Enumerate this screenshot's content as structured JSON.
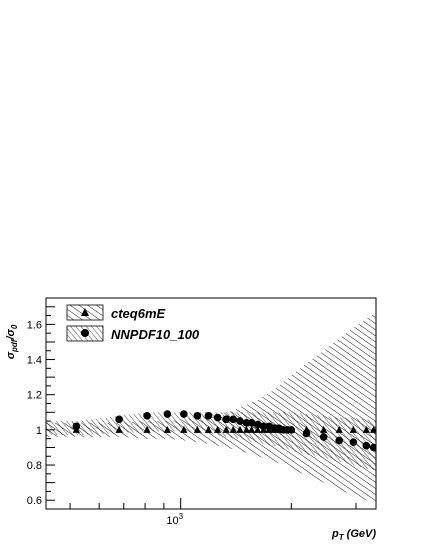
{
  "chart_data": {
    "type": "scatter",
    "title": "",
    "xlabel": "p_T (GeV)",
    "xlabel_main": "p",
    "xlabel_sub": "T",
    "xlabel_unit": "(GeV)",
    "ylabel_main": "σ",
    "ylabel_sub": "pdf",
    "ylabel_denom": "/σ",
    "ylabel_denom_sub": "0",
    "xscale": "log",
    "xlim": [
      430,
      3400
    ],
    "ylim": [
      0.55,
      1.75
    ],
    "yticks": [
      {
        "value": 0.6,
        "label": "0.6"
      },
      {
        "value": 0.8,
        "label": "0.8"
      },
      {
        "value": 1.0,
        "label": "1"
      },
      {
        "value": 1.2,
        "label": "1.2"
      },
      {
        "value": 1.4,
        "label": "1.4"
      },
      {
        "value": 1.6,
        "label": "1.6"
      }
    ],
    "xticks_major": [
      {
        "value": 1000,
        "base": "10",
        "exp": "3"
      }
    ],
    "xticks_minor": [
      500,
      600,
      700,
      800,
      900,
      2000,
      3000
    ],
    "legend_position": "top-left",
    "x": [
      520,
      680,
      810,
      920,
      1020,
      1110,
      1190,
      1260,
      1330,
      1390,
      1450,
      1510,
      1560,
      1620,
      1680,
      1740,
      1800,
      1850,
      1900,
      1950,
      2000,
      2200,
      2450,
      2700,
      2950,
      3200,
      3350
    ],
    "series": [
      {
        "name": "cteq6mE",
        "marker": "triangle",
        "values": [
          1.0,
          1.0,
          1.0,
          1.0,
          1.0,
          1.0,
          1.0,
          1.0,
          1.0,
          1.0,
          1.0,
          1.0,
          1.0,
          1.0,
          1.0,
          1.0,
          1.0,
          1.0,
          1.0,
          1.0,
          1.0,
          1.0,
          1.0,
          1.0,
          1.0,
          1.0,
          1.0
        ],
        "band_low": [
          0.96,
          0.96,
          0.95,
          0.95,
          0.94,
          0.93,
          0.92,
          0.91,
          0.9,
          0.89,
          0.88,
          0.87,
          0.86,
          0.85,
          0.84,
          0.83,
          0.82,
          0.81,
          0.8,
          0.79,
          0.78,
          0.74,
          0.7,
          0.66,
          0.63,
          0.6,
          0.58
        ],
        "band_high": [
          1.04,
          1.04,
          1.05,
          1.05,
          1.06,
          1.07,
          1.08,
          1.09,
          1.1,
          1.11,
          1.13,
          1.14,
          1.16,
          1.17,
          1.19,
          1.21,
          1.23,
          1.25,
          1.27,
          1.29,
          1.31,
          1.38,
          1.45,
          1.52,
          1.58,
          1.63,
          1.66
        ]
      },
      {
        "name": "NNPDF10_100",
        "marker": "circle",
        "values": [
          1.02,
          1.06,
          1.08,
          1.09,
          1.09,
          1.08,
          1.08,
          1.07,
          1.06,
          1.06,
          1.05,
          1.04,
          1.04,
          1.03,
          1.02,
          1.02,
          1.01,
          1.01,
          1.0,
          1.0,
          1.0,
          0.98,
          0.96,
          0.94,
          0.93,
          0.91,
          0.9
        ],
        "band_low": [
          0.97,
          0.98,
          0.99,
          0.99,
          0.99,
          0.98,
          0.98,
          0.97,
          0.96,
          0.95,
          0.95,
          0.94,
          0.93,
          0.93,
          0.92,
          0.91,
          0.91,
          0.9,
          0.89,
          0.89,
          0.88,
          0.86,
          0.84,
          0.82,
          0.8,
          0.78,
          0.77
        ],
        "band_high": [
          1.05,
          1.08,
          1.1,
          1.1,
          1.1,
          1.1,
          1.1,
          1.1,
          1.1,
          1.1,
          1.1,
          1.1,
          1.1,
          1.1,
          1.1,
          1.1,
          1.1,
          1.1,
          1.1,
          1.1,
          1.1,
          1.09,
          1.08,
          1.07,
          1.07,
          1.06,
          1.05
        ]
      }
    ]
  }
}
